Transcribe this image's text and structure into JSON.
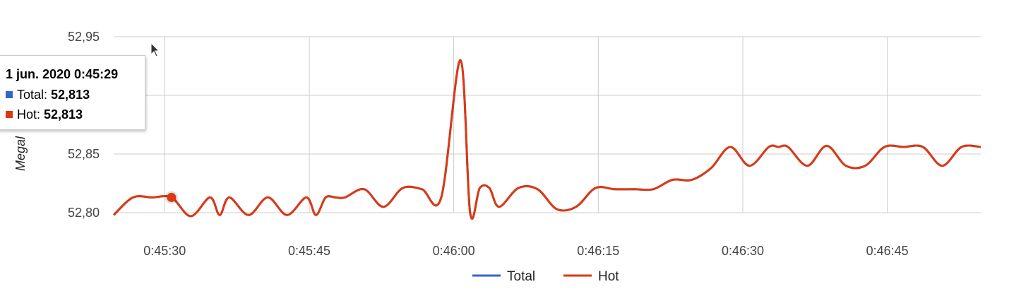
{
  "chart_data": {
    "type": "line",
    "ylabel": "Megal",
    "y_ticks": [
      "52,80",
      "52,85",
      "52,95"
    ],
    "ylim": [
      52.8,
      52.95
    ],
    "x_ticks": [
      "0:45:30",
      "0:45:45",
      "0:46:00",
      "0:46:15",
      "0:46:30",
      "0:46:45"
    ],
    "x_tick_seconds": [
      30,
      45,
      60,
      75,
      90,
      105
    ],
    "xlim_seconds": [
      24.7,
      114.7
    ],
    "x_seconds": [
      24.7,
      26.7,
      28.7,
      30.7,
      32.7,
      34.7,
      35.7,
      36.7,
      38.7,
      40.7,
      42.7,
      44.7,
      45.7,
      46.7,
      47.7,
      48.7,
      50.7,
      52.7,
      54.7,
      56.7,
      58.7,
      60.7,
      61.7,
      62.7,
      63.7,
      64.7,
      66.7,
      68.7,
      70.7,
      72.7,
      74.7,
      76.7,
      78.7,
      80.7,
      82.7,
      84.7,
      86.7,
      88.7,
      90.7,
      92.7,
      93.7,
      94.7,
      96.7,
      98.7,
      100.7,
      102.7,
      104.7,
      106.7,
      108.7,
      110.7,
      112.7,
      114.7
    ],
    "series": [
      {
        "name": "Total",
        "color": "#3366cc",
        "values": [
          52.798,
          52.813,
          52.813,
          52.813,
          52.797,
          52.813,
          52.798,
          52.813,
          52.798,
          52.813,
          52.798,
          52.813,
          52.798,
          52.813,
          52.813,
          52.813,
          52.82,
          52.805,
          52.821,
          52.82,
          52.813,
          52.93,
          52.8,
          52.821,
          52.821,
          52.805,
          52.821,
          52.82,
          52.803,
          52.805,
          52.821,
          52.82,
          52.82,
          52.82,
          52.828,
          52.828,
          52.838,
          52.856,
          52.84,
          52.856,
          52.856,
          52.856,
          52.84,
          52.857,
          52.84,
          52.84,
          52.856,
          52.856,
          52.856,
          52.84,
          52.856,
          52.856
        ]
      },
      {
        "name": "Hot",
        "color": "#dc3912",
        "values": [
          52.798,
          52.813,
          52.813,
          52.813,
          52.797,
          52.813,
          52.798,
          52.813,
          52.798,
          52.813,
          52.798,
          52.813,
          52.798,
          52.813,
          52.813,
          52.813,
          52.82,
          52.805,
          52.821,
          52.82,
          52.813,
          52.93,
          52.8,
          52.821,
          52.821,
          52.805,
          52.821,
          52.82,
          52.803,
          52.805,
          52.821,
          52.82,
          52.82,
          52.82,
          52.828,
          52.828,
          52.838,
          52.856,
          52.84,
          52.856,
          52.856,
          52.856,
          52.84,
          52.857,
          52.84,
          52.84,
          52.856,
          52.856,
          52.856,
          52.84,
          52.856,
          52.856
        ]
      }
    ],
    "highlight_index": 3,
    "grid": true,
    "legend_position": "bottom"
  },
  "tooltip": {
    "title": "1 jun. 2020 0:45:29",
    "rows": [
      {
        "label": "Total: ",
        "value": "52,813",
        "color": "#3366cc"
      },
      {
        "label": "Hot: ",
        "value": "52,813",
        "color": "#dc3912"
      }
    ]
  },
  "cursor_icon": "arrow-cursor-icon"
}
